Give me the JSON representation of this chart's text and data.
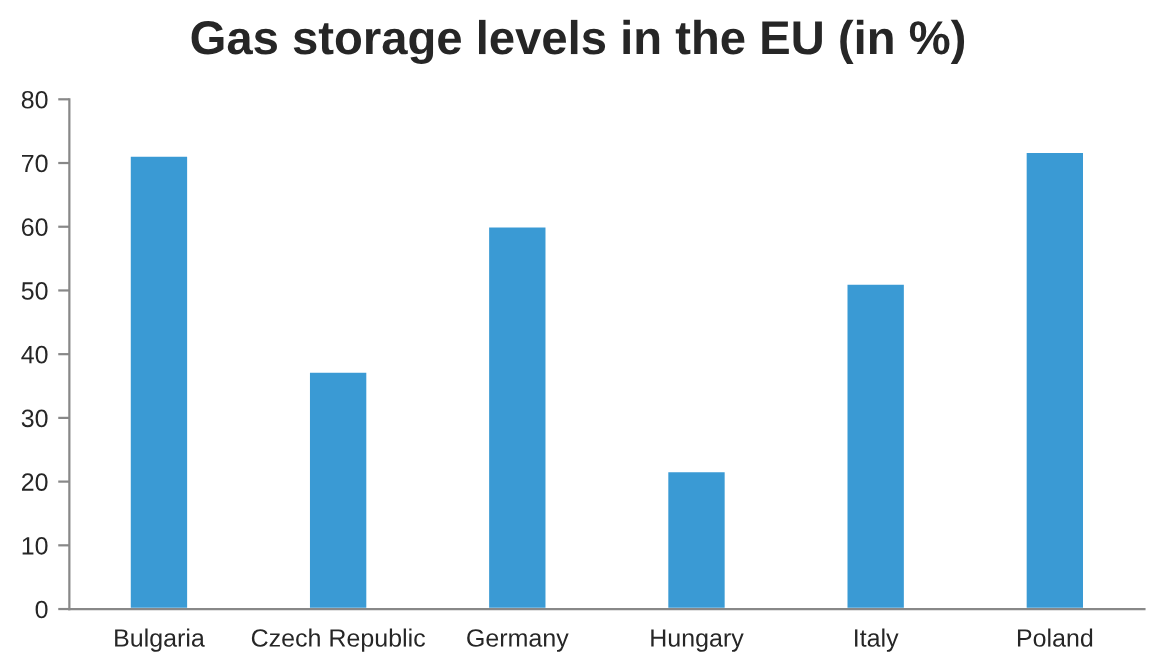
{
  "chart_data": {
    "type": "bar",
    "title": "Gas storage levels in the EU (in %)",
    "categories": [
      "Bulgaria",
      "Czech Republic",
      "Germany",
      "Hungary",
      "Italy",
      "Poland"
    ],
    "values": [
      71.2,
      37.3,
      60.1,
      21.7,
      51.1,
      71.8
    ],
    "color": "#3a9ad4",
    "ylim": [
      0,
      80
    ],
    "yticks": [
      0,
      10,
      20,
      30,
      40,
      50,
      60,
      70,
      80
    ],
    "grid": false,
    "legend": false
  }
}
